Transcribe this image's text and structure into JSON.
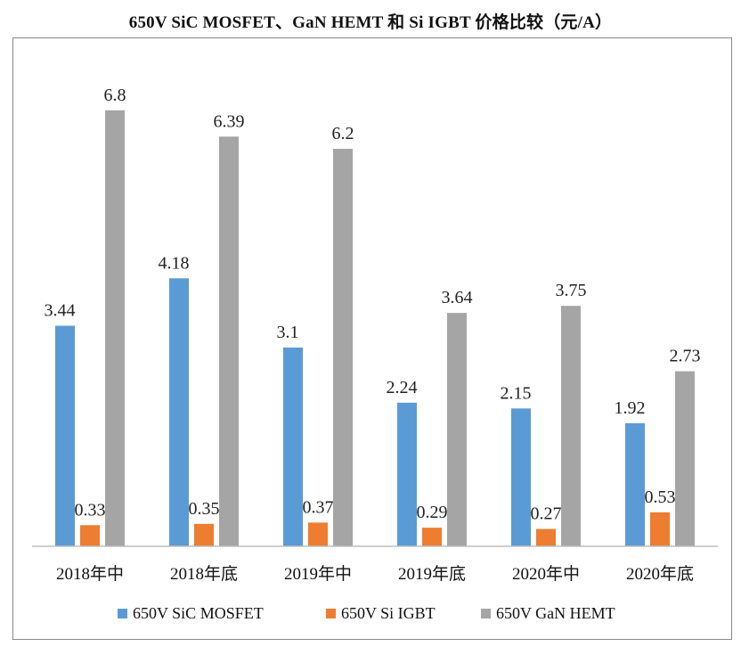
{
  "chart_data": {
    "type": "bar",
    "title": "650V SiC MOSFET、GaN HEMT 和 Si IGBT 价格比较（元/A）",
    "xlabel": "",
    "ylabel": "",
    "ylim": [
      0,
      7.2
    ],
    "grid": false,
    "legend_position": "bottom",
    "categories": [
      "2018年中",
      "2018年底",
      "2019年中",
      "2019年底",
      "2020年中",
      "2020年底"
    ],
    "series": [
      {
        "name": "650V SiC MOSFET",
        "color": "#5b9bd5",
        "values": [
          3.44,
          4.18,
          3.1,
          2.24,
          2.15,
          1.92
        ],
        "labels": [
          "3.44",
          "4.18",
          "3.1",
          "2.24",
          "2.15",
          "1.92"
        ]
      },
      {
        "name": "650V Si IGBT",
        "color": "#ed7d31",
        "values": [
          0.33,
          0.35,
          0.37,
          0.29,
          0.27,
          0.53
        ],
        "labels": [
          "0.33",
          "0.35",
          "0.37",
          "0.29",
          "0.27",
          "0.53"
        ]
      },
      {
        "name": "650V GaN HEMT",
        "color": "#a5a5a5",
        "values": [
          6.8,
          6.39,
          6.2,
          3.64,
          3.75,
          2.73
        ],
        "labels": [
          "6.8",
          "6.39",
          "6.2",
          "3.64",
          "3.75",
          "2.73"
        ]
      }
    ]
  }
}
